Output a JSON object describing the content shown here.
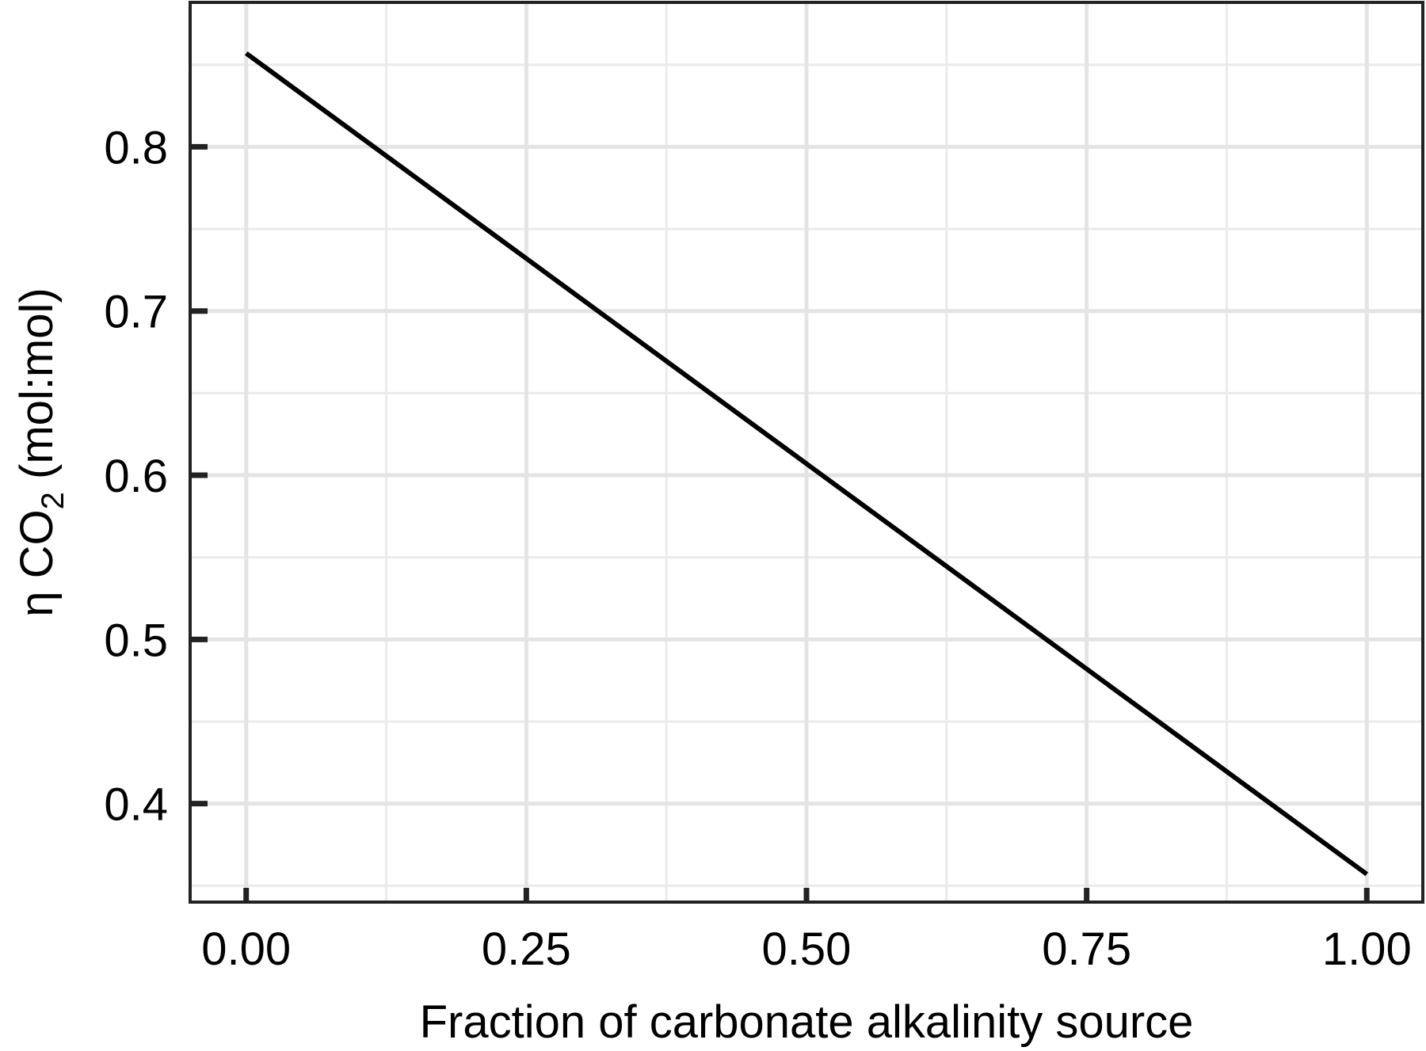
{
  "chart_data": {
    "type": "line",
    "title": "",
    "xlabel": "Fraction of carbonate alkalinity source",
    "ylabel": {
      "prefix": "η CO",
      "subscript": "2",
      "suffix": " (mol:mol)"
    },
    "xlim": [
      -0.05,
      1.05
    ],
    "ylim": [
      0.34,
      0.888
    ],
    "x_ticks": [
      0.0,
      0.25,
      0.5,
      0.75,
      1.0
    ],
    "x_tick_labels": [
      "0.00",
      "0.25",
      "0.50",
      "0.75",
      "1.00"
    ],
    "x_minor_ticks": [
      0.125,
      0.375,
      0.625,
      0.875
    ],
    "y_ticks": [
      0.4,
      0.5,
      0.6,
      0.7,
      0.8
    ],
    "y_tick_labels": [
      "0.4",
      "0.5",
      "0.6",
      "0.7",
      "0.8"
    ],
    "y_minor_ticks": [
      0.35,
      0.45,
      0.55,
      0.65,
      0.75,
      0.85
    ],
    "grid": true,
    "series": [
      {
        "x": [
          0.0,
          0.25,
          0.5,
          0.75,
          1.0
        ],
        "y": [
          0.857,
          0.732,
          0.607,
          0.482,
          0.357
        ],
        "color": "#000000"
      }
    ]
  }
}
